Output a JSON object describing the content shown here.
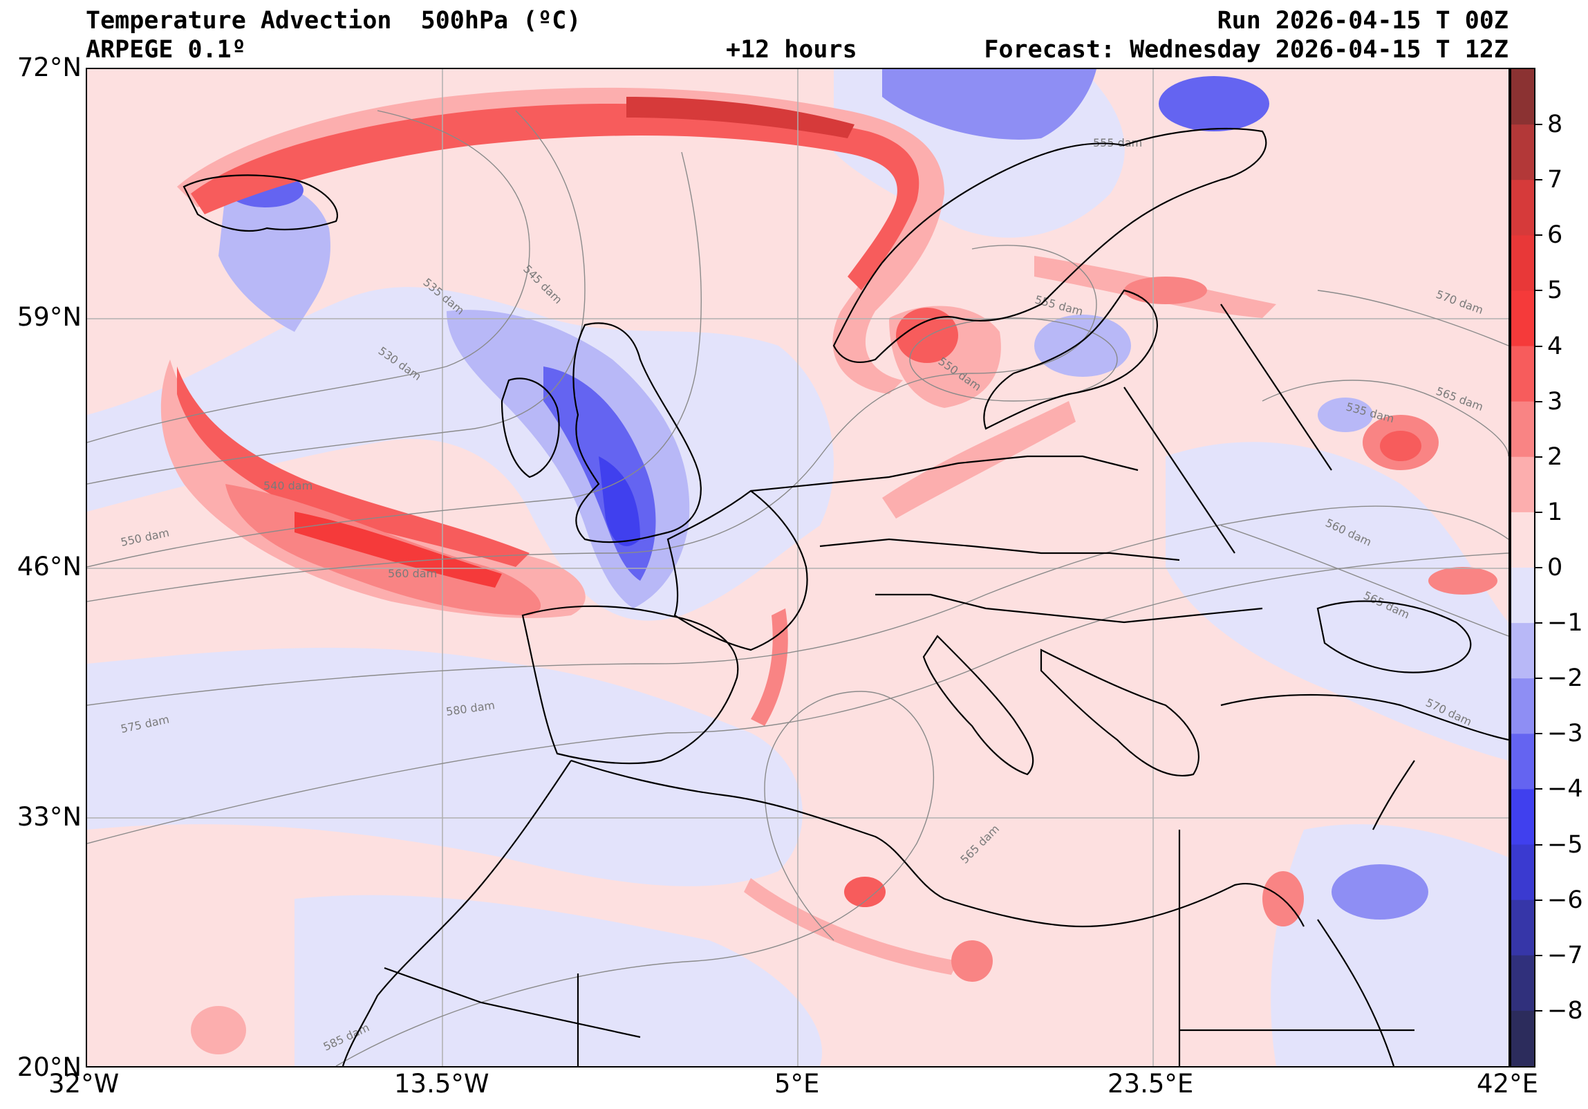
{
  "header": {
    "title": "Temperature Advection  500hPa (ºC)",
    "model": "ARPEGE 0.1º",
    "lead": "+12 hours",
    "run": "Run 2026-04-15 T 00Z",
    "forecast": "Forecast: Wednesday 2026-04-15 T 12Z"
  },
  "axes": {
    "lat_labels": [
      "72°N",
      "59°N",
      "46°N",
      "33°N",
      "20°N"
    ],
    "lon_labels": [
      "32°W",
      "13.5°W",
      "5°E",
      "23.5°E",
      "42°E"
    ],
    "lat_values": [
      72,
      59,
      46,
      33,
      20
    ],
    "lon_values": [
      -32,
      -13.5,
      5,
      23.5,
      42
    ]
  },
  "colorbar": {
    "tick_values": [
      8,
      7,
      6,
      5,
      4,
      3,
      2,
      1,
      0,
      -1,
      -2,
      -3,
      -4,
      -5,
      -6,
      -7,
      -8
    ],
    "tick_labels": [
      "8",
      "7",
      "6",
      "5",
      "4",
      "3",
      "2",
      "1",
      "0",
      "−1",
      "−2",
      "−3",
      "−4",
      "−5",
      "−6",
      "−7",
      "−8"
    ],
    "range": [
      -9,
      9
    ],
    "colors": {
      "9": "#8b3232",
      "8": "#b33838",
      "7": "#d63a3a",
      "6": "#e83838",
      "5": "#f53a3a",
      "4": "#f75c5c",
      "3": "#f98484",
      "2": "#fcaeae",
      "1": "#fde0e0",
      "-1": "#e3e3fb",
      "-2": "#b8b8f7",
      "-3": "#8e8ef4",
      "-4": "#6464f1",
      "-5": "#4040ee",
      "-6": "#3a3ad0",
      "-7": "#3636a8",
      "-8": "#30307c",
      "-9": "#2c2c5c"
    }
  },
  "contours": {
    "labels": [
      "555 dam",
      "545 dam",
      "535 dam",
      "530 dam",
      "540 dam",
      "550 dam",
      "560 dam",
      "555 dam",
      "550 dam",
      "570 dam",
      "565 dam",
      "535 dam",
      "560 dam",
      "565 dam",
      "570 dam",
      "575 dam",
      "580 dam",
      "565 dam",
      "585 dam"
    ]
  },
  "map_colors": {
    "background": "#fde0e0",
    "land_outline": "#000000",
    "grid": "#b0b0b0",
    "isoline": "#8a8a8a"
  }
}
